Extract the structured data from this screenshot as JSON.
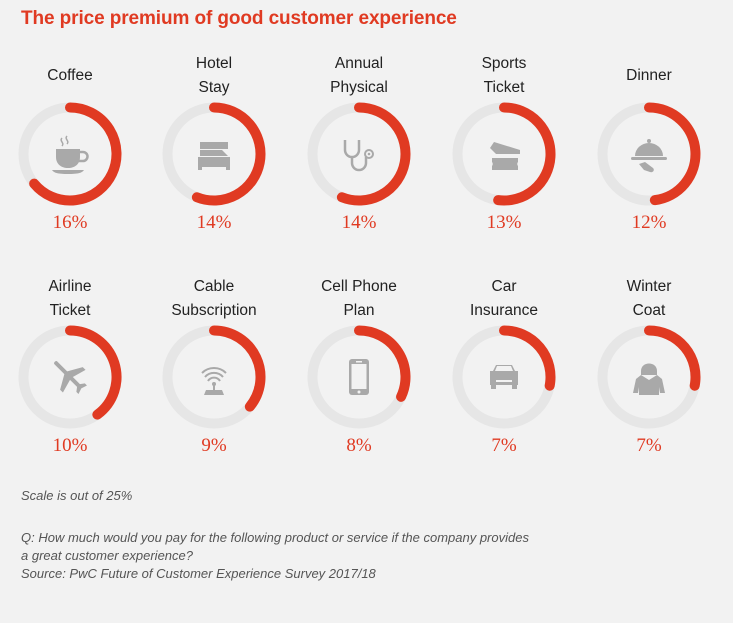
{
  "chart_data": {
    "type": "radial-progress",
    "title": "The price premium of good customer experience",
    "scale_max_percent": 25,
    "items": [
      {
        "label_lines": [
          "Coffee"
        ],
        "value": 16,
        "display": "16%",
        "icon": "coffee-cup-icon"
      },
      {
        "label_lines": [
          "Hotel",
          "Stay"
        ],
        "value": 14,
        "display": "14%",
        "icon": "bed-icon"
      },
      {
        "label_lines": [
          "Annual",
          "Physical"
        ],
        "value": 14,
        "display": "14%",
        "icon": "stethoscope-icon"
      },
      {
        "label_lines": [
          "Sports",
          "Ticket"
        ],
        "value": 13,
        "display": "13%",
        "icon": "ticket-icon"
      },
      {
        "label_lines": [
          "Dinner"
        ],
        "value": 12,
        "display": "12%",
        "icon": "serving-cloche-icon"
      },
      {
        "label_lines": [
          "Airline",
          "Ticket"
        ],
        "value": 10,
        "display": "10%",
        "icon": "airplane-icon"
      },
      {
        "label_lines": [
          "Cable",
          "Subscription"
        ],
        "value": 9,
        "display": "9%",
        "icon": "antenna-icon"
      },
      {
        "label_lines": [
          "Cell Phone",
          "Plan"
        ],
        "value": 8,
        "display": "8%",
        "icon": "smartphone-icon"
      },
      {
        "label_lines": [
          "Car",
          "Insurance"
        ],
        "value": 7,
        "display": "7%",
        "icon": "car-icon"
      },
      {
        "label_lines": [
          "Winter",
          "Coat"
        ],
        "value": 7,
        "display": "7%",
        "icon": "coat-icon"
      }
    ],
    "colors": {
      "fill": "#e03a22",
      "track": "#e6e6e6",
      "icon": "#a9a9a9",
      "title": "#e03a22"
    }
  },
  "notes": {
    "scale": "Scale is out of 25%",
    "question_line1": "Q: How much would you pay for the following product or service if the company provides",
    "question_line2": "a great customer experience?",
    "source": "Source: PwC Future of Customer Experience Survey 2017/18"
  }
}
